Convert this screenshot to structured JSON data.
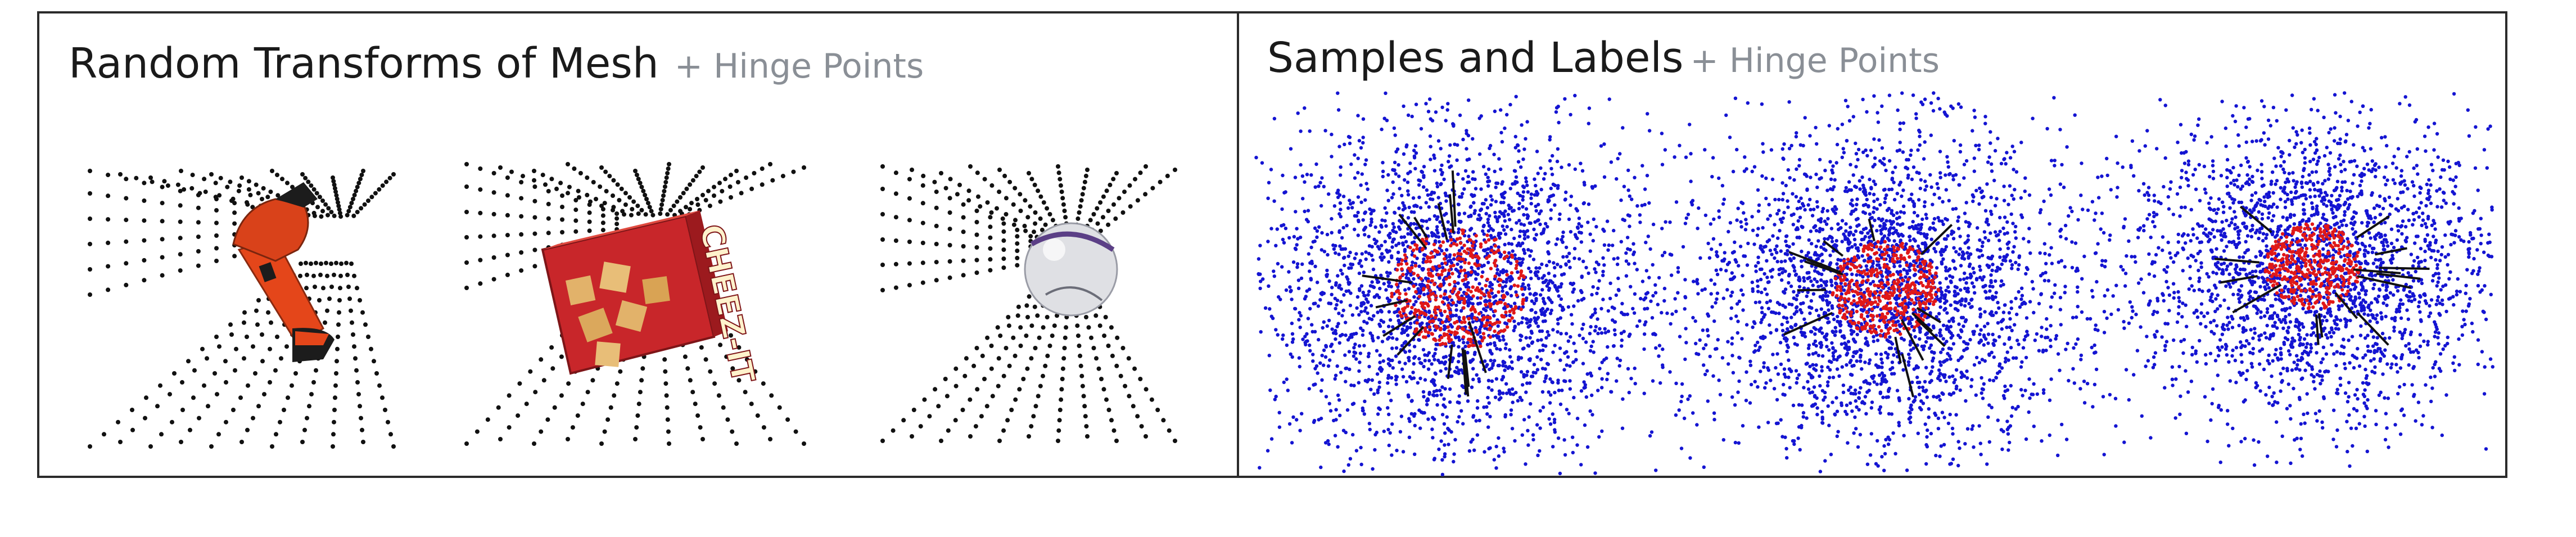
{
  "panels": {
    "left": {
      "title": "Random Transforms of Mesh",
      "subtitle": "+ Hinge Points"
    },
    "right": {
      "title": "Samples and Labels",
      "subtitle": "+ Hinge Points"
    }
  },
  "objects": [
    {
      "name": "drill",
      "package_text": ""
    },
    {
      "name": "cracker-box",
      "package_text": "CHEEZ-IT"
    },
    {
      "name": "ball",
      "package_text": ""
    }
  ],
  "colors": {
    "hinge_points": "#111111",
    "sample_outside": "#1414d2",
    "sample_inside": "#e01818",
    "drill_body": "#e4461a",
    "drill_dark": "#1c1c1c",
    "box_red": "#c8262a",
    "cracker": "#e2b26a",
    "ball": "#dfe0e4",
    "ball_stripe": "#5b3f86",
    "border": "#2b2b2b"
  }
}
